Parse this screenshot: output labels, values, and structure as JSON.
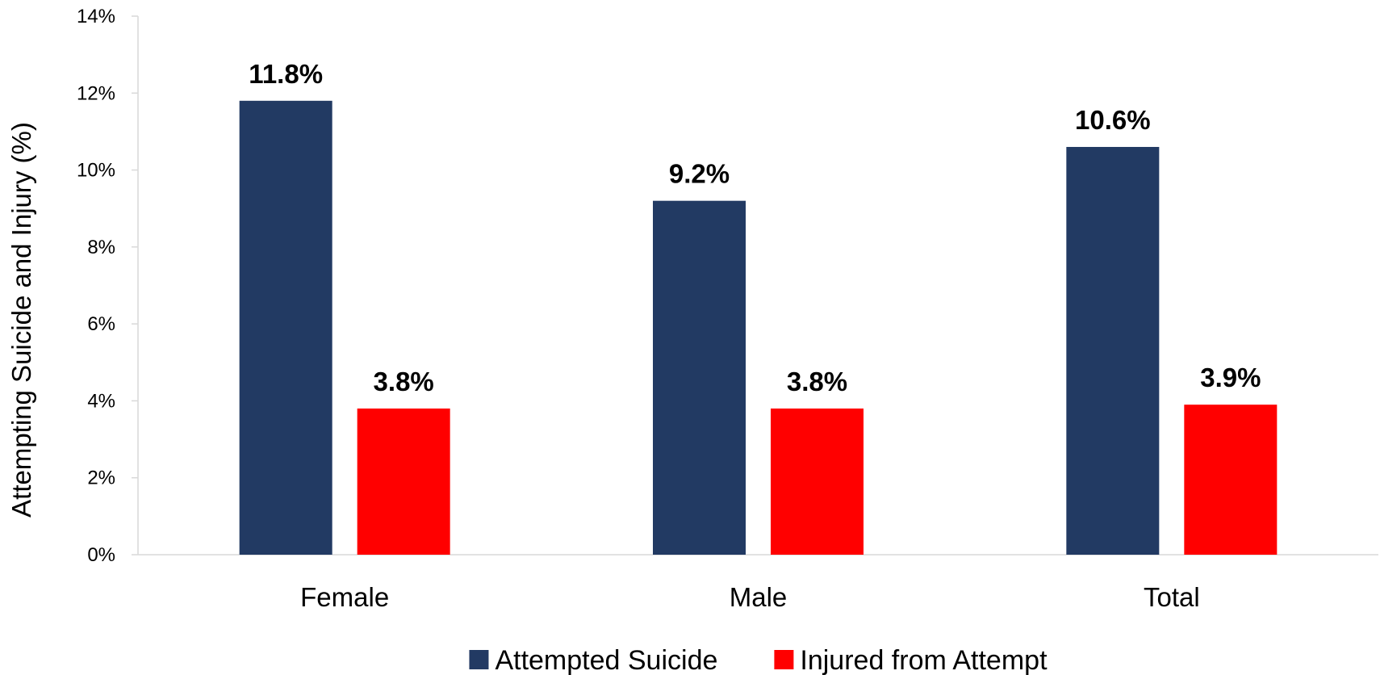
{
  "chart_data": {
    "type": "bar",
    "title": "",
    "xlabel": "",
    "ylabel": "Attempting Suicide and Injury  (%)",
    "categories": [
      "Female",
      "Male",
      "Total"
    ],
    "series": [
      {
        "name": "Attempted Suicide",
        "values": [
          11.8,
          9.2,
          10.6
        ],
        "color": "#223A63",
        "labels": [
          "11.8%",
          "9.2%",
          "10.6%"
        ]
      },
      {
        "name": "Injured from Attempt",
        "values": [
          3.8,
          3.8,
          3.9
        ],
        "color": "#FF0000",
        "labels": [
          "3.8%",
          "3.8%",
          "3.9%"
        ]
      }
    ],
    "ylim": [
      0,
      14
    ],
    "yticks": [
      0,
      2,
      4,
      6,
      8,
      10,
      12,
      14
    ],
    "ytick_labels": [
      "0%",
      "2%",
      "4%",
      "6%",
      "8%",
      "10%",
      "12%",
      "14%"
    ],
    "grid": false,
    "legend_position": "bottom-center",
    "axis_color": "#D9D9D9"
  }
}
